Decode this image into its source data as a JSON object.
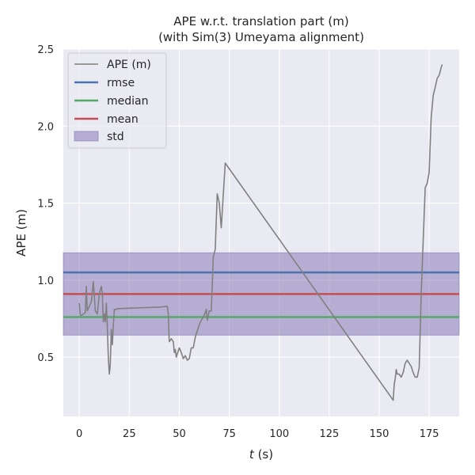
{
  "chart_data": {
    "type": "line",
    "title_line1": "APE w.r.t. translation part (m)",
    "title_line2": "(with Sim(3) Umeyama alignment)",
    "xlabel_var": "t",
    "xlabel_unit": " (s)",
    "ylabel": "APE (m)",
    "xlim": [
      -8,
      190
    ],
    "ylim": [
      0.115,
      2.5
    ],
    "x_ticks": [
      0,
      25,
      50,
      75,
      100,
      125,
      150,
      175
    ],
    "y_ticks": [
      0.5,
      1.0,
      1.5,
      2.0,
      2.5
    ],
    "x_tick_labels": [
      "0",
      "25",
      "50",
      "75",
      "100",
      "125",
      "150",
      "175"
    ],
    "y_tick_labels": [
      "0.5",
      "1.0",
      "1.5",
      "2.0",
      "2.5"
    ],
    "grid": true,
    "legend_position": "top-left",
    "legend": {
      "ape": "APE (m)",
      "rmse": "rmse",
      "median": "median",
      "mean": "mean",
      "std": "std"
    },
    "stats": {
      "rmse": 1.05,
      "median": 0.76,
      "mean": 0.91,
      "std_low": 0.643,
      "std_high": 1.177
    },
    "series": [
      {
        "name": "APE (m)",
        "x": [
          0,
          0.5,
          1,
          2,
          3,
          3.5,
          4,
          5,
          6,
          7,
          7.5,
          8,
          9,
          10,
          11,
          11.5,
          12,
          12.5,
          13,
          13.5,
          14,
          14.5,
          15,
          15.5,
          16,
          16.5,
          17,
          17.5,
          18,
          18.5,
          19,
          20,
          30,
          40,
          44,
          44.5,
          45,
          46,
          47,
          47.5,
          48,
          48.5,
          49,
          50,
          51,
          52,
          53,
          54,
          55,
          56,
          57,
          58,
          59,
          60,
          61,
          62,
          63,
          63.5,
          64,
          65,
          66,
          67,
          68,
          69,
          70,
          71,
          73,
          157,
          157.5,
          158,
          158.5,
          159,
          160,
          161,
          162,
          163,
          164,
          165,
          166,
          167,
          168,
          169,
          170,
          171,
          172,
          173,
          174,
          175,
          176,
          177,
          178,
          179,
          180,
          181,
          181.5
        ],
        "y": [
          0.85,
          0.77,
          0.77,
          0.78,
          0.79,
          0.96,
          0.8,
          0.83,
          0.86,
          0.99,
          0.9,
          0.8,
          0.78,
          0.91,
          0.96,
          0.92,
          0.73,
          0.78,
          0.73,
          0.85,
          0.7,
          0.5,
          0.39,
          0.45,
          0.68,
          0.58,
          0.7,
          0.81,
          0.81,
          0.81,
          0.815,
          0.815,
          0.82,
          0.825,
          0.83,
          0.78,
          0.6,
          0.62,
          0.6,
          0.53,
          0.55,
          0.5,
          0.52,
          0.56,
          0.53,
          0.49,
          0.51,
          0.48,
          0.49,
          0.56,
          0.56,
          0.63,
          0.67,
          0.71,
          0.74,
          0.76,
          0.79,
          0.81,
          0.74,
          0.8,
          0.8,
          1.15,
          1.2,
          1.56,
          1.5,
          1.34,
          1.76,
          0.22,
          0.32,
          0.36,
          0.42,
          0.39,
          0.39,
          0.37,
          0.4,
          0.46,
          0.48,
          0.46,
          0.44,
          0.4,
          0.37,
          0.37,
          0.43,
          0.9,
          1.25,
          1.6,
          1.63,
          1.7,
          2.05,
          2.2,
          2.25,
          2.31,
          2.33,
          2.38,
          2.4
        ]
      }
    ]
  },
  "colors": {
    "plot_bg": "#EAEAF2",
    "grid": "#FFFFFF",
    "ape": "#808080",
    "rmse": "#4C72B0",
    "median": "#55A868",
    "mean": "#C44E52",
    "std_fill": "#8172B2",
    "text": "#262626"
  }
}
